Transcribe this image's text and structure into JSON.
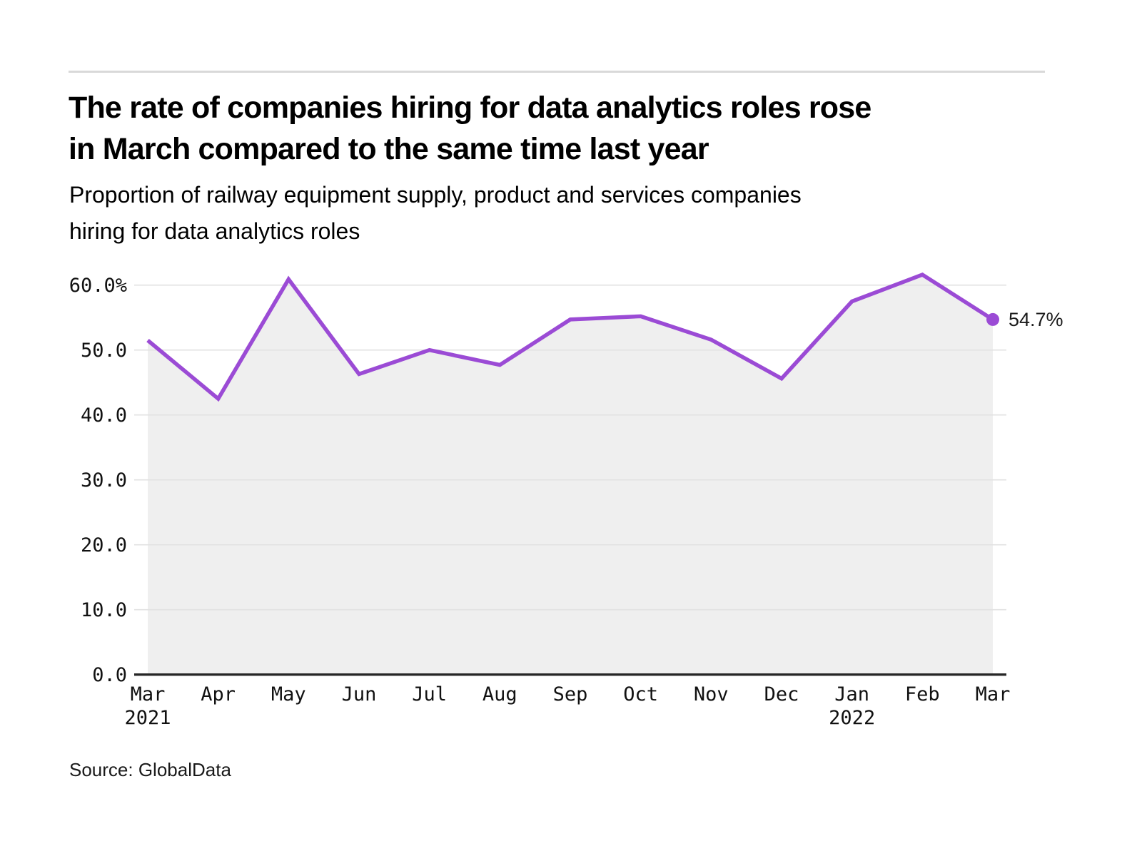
{
  "title": {
    "line1": "The rate of companies hiring for data analytics roles rose",
    "line2": "in March compared to the same time last year"
  },
  "subtitle": {
    "line1": "Proportion of railway equipment supply, product and services companies",
    "line2": "hiring for data analytics roles"
  },
  "source": "Source: GlobalData",
  "chart_data": {
    "type": "area",
    "title": "",
    "xlabel": "",
    "ylabel": "",
    "categories": [
      "Mar",
      "Apr",
      "May",
      "Jun",
      "Jul",
      "Aug",
      "Sep",
      "Oct",
      "Nov",
      "Dec",
      "Jan",
      "Feb",
      "Mar"
    ],
    "category_sublabels": [
      {
        "index": 0,
        "label": "2021"
      },
      {
        "index": 10,
        "label": "2022"
      }
    ],
    "values": [
      51.5,
      42.5,
      60.9,
      46.3,
      50.0,
      47.7,
      54.7,
      55.2,
      51.6,
      45.6,
      57.5,
      61.6,
      54.7
    ],
    "unit": "%",
    "ylim": [
      0,
      63.5
    ],
    "yticks": [
      0,
      10,
      20,
      30,
      40,
      50,
      60
    ],
    "ytick_labels": [
      "0.0",
      "10.0",
      "20.0",
      "30.0",
      "40.0",
      "50.0",
      "60.0%"
    ],
    "grid": "horizontal",
    "legend": "none",
    "end_label": "54.7%",
    "colors": {
      "line": "#9b4bd5",
      "end_dot": "#9b4bd5",
      "area_fill": "#efefef",
      "grid_line": "#e2e2e2",
      "axis_line": "#262626"
    }
  }
}
